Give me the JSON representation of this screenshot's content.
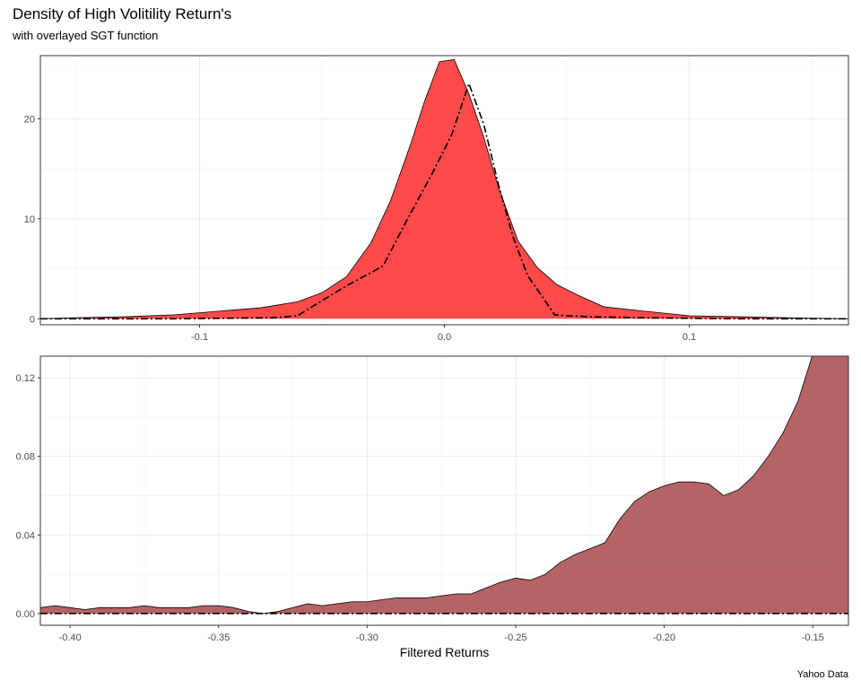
{
  "title": "Density of High Volitility Return's",
  "subtitle": "with overlayed SGT function",
  "caption": "Yahoo Data",
  "chart_data": [
    {
      "type": "area",
      "panel": "top",
      "xlim": [
        -0.165,
        0.165
      ],
      "ylim": [
        -0.6,
        26.3
      ],
      "xticks": [
        -0.1,
        0.0,
        0.1
      ],
      "xtick_labels": [
        "-0.1",
        "0.0",
        "0.1"
      ],
      "yticks": [
        0,
        10,
        20
      ],
      "ytick_labels": [
        "0",
        "10",
        "20"
      ],
      "xlabel": "",
      "ylabel": "",
      "grid": true,
      "fill_color": "#ff2a2a",
      "series": [
        {
          "kind": "density",
          "x": [
            -0.165,
            -0.15,
            -0.13,
            -0.11,
            -0.09,
            -0.075,
            -0.06,
            -0.05,
            -0.04,
            -0.03,
            -0.022,
            -0.014,
            -0.008,
            -0.002,
            0.004,
            0.01,
            0.016,
            0.022,
            0.03,
            0.038,
            0.046,
            0.055,
            0.065,
            0.08,
            0.1,
            0.12,
            0.14,
            0.165
          ],
          "y": [
            0.0,
            0.1,
            0.2,
            0.4,
            0.8,
            1.1,
            1.7,
            2.6,
            4.2,
            7.6,
            11.8,
            17.3,
            21.8,
            25.7,
            25.9,
            22.5,
            18.2,
            13.2,
            7.8,
            5.1,
            3.4,
            2.3,
            1.2,
            0.8,
            0.3,
            0.2,
            0.1,
            0.0
          ]
        },
        {
          "kind": "sgt",
          "x": [
            -0.165,
            -0.11,
            -0.07,
            -0.06,
            -0.05,
            -0.04,
            -0.03,
            -0.025,
            -0.015,
            -0.005,
            0.003,
            0.01,
            0.016,
            0.022,
            0.028,
            0.034,
            0.04,
            0.045,
            0.05,
            0.06,
            0.08,
            0.12,
            0.165
          ],
          "y": [
            0.0,
            0.0,
            0.1,
            0.3,
            1.8,
            3.3,
            4.6,
            5.3,
            10.0,
            14.5,
            18.4,
            23.5,
            19.5,
            13.5,
            8.2,
            4.3,
            2.2,
            0.4,
            0.3,
            0.2,
            0.1,
            0.0,
            0.0
          ]
        }
      ]
    },
    {
      "type": "area",
      "panel": "bottom",
      "xlim": [
        -0.41,
        -0.138
      ],
      "ylim": [
        -0.006,
        0.131
      ],
      "xticks": [
        -0.4,
        -0.35,
        -0.3,
        -0.25,
        -0.2,
        -0.15
      ],
      "xtick_labels": [
        "-0.40",
        "-0.35",
        "-0.30",
        "-0.25",
        "-0.20",
        "-0.15"
      ],
      "yticks": [
        0.0,
        0.04,
        0.08,
        0.12
      ],
      "ytick_labels": [
        "0.00",
        "0.04",
        "0.08",
        "0.12"
      ],
      "xlabel": "Filtered Returns",
      "ylabel": "",
      "grid": true,
      "fill_color": "#a9484b",
      "series": [
        {
          "kind": "density",
          "x": [
            -0.41,
            -0.405,
            -0.4,
            -0.395,
            -0.39,
            -0.385,
            -0.38,
            -0.375,
            -0.37,
            -0.365,
            -0.36,
            -0.355,
            -0.35,
            -0.345,
            -0.34,
            -0.335,
            -0.33,
            -0.325,
            -0.32,
            -0.315,
            -0.31,
            -0.305,
            -0.3,
            -0.295,
            -0.29,
            -0.285,
            -0.28,
            -0.275,
            -0.27,
            -0.265,
            -0.26,
            -0.255,
            -0.25,
            -0.245,
            -0.24,
            -0.235,
            -0.23,
            -0.225,
            -0.22,
            -0.215,
            -0.21,
            -0.205,
            -0.2,
            -0.195,
            -0.19,
            -0.185,
            -0.18,
            -0.175,
            -0.17,
            -0.165,
            -0.16,
            -0.155,
            -0.15,
            -0.145,
            -0.14,
            -0.138
          ],
          "y": [
            0.003,
            0.004,
            0.003,
            0.002,
            0.003,
            0.003,
            0.003,
            0.004,
            0.003,
            0.003,
            0.003,
            0.004,
            0.004,
            0.003,
            0.001,
            0.0,
            0.001,
            0.003,
            0.005,
            0.004,
            0.005,
            0.006,
            0.006,
            0.007,
            0.008,
            0.008,
            0.008,
            0.009,
            0.01,
            0.01,
            0.013,
            0.016,
            0.018,
            0.017,
            0.02,
            0.026,
            0.03,
            0.033,
            0.036,
            0.048,
            0.057,
            0.062,
            0.065,
            0.067,
            0.067,
            0.066,
            0.06,
            0.063,
            0.07,
            0.08,
            0.092,
            0.108,
            0.132,
            0.132,
            0.132,
            0.132
          ]
        },
        {
          "kind": "sgt",
          "x": [
            -0.41,
            -0.138
          ],
          "y": [
            0.0,
            0.0
          ]
        }
      ]
    }
  ]
}
